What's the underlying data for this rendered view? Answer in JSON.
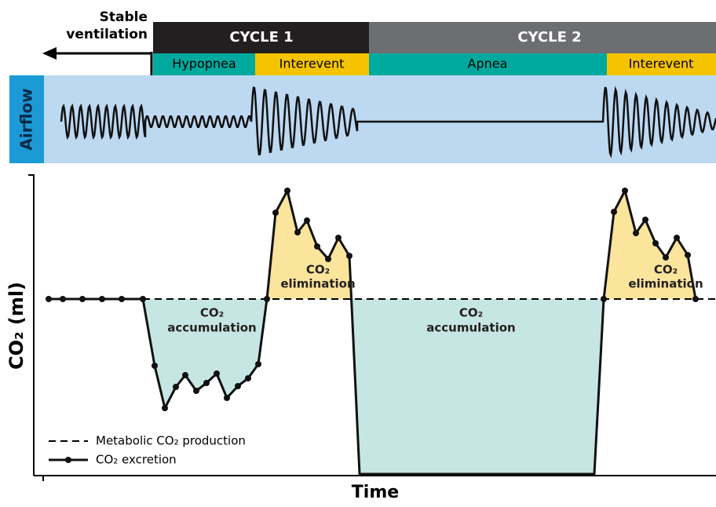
{
  "header": {
    "stable_ventilation": [
      "Stable",
      "ventilation"
    ],
    "cycles": [
      "CYCLE 1",
      "CYCLE 2"
    ],
    "phases": [
      "Hypopnea",
      "Interevent",
      "Apnea",
      "Interevent"
    ]
  },
  "airflow": {
    "label": "Airflow"
  },
  "co2_panel": {
    "y_label": "CO₂ (ml)",
    "x_label": "Time",
    "regions": [
      [
        "CO₂",
        "accumulation"
      ],
      [
        "CO₂",
        "elimination"
      ],
      [
        "CO₂",
        "accumulation"
      ],
      [
        "CO₂",
        "elimination"
      ]
    ],
    "legend": [
      "Metabolic CO₂ production",
      "CO₂ excretion"
    ]
  }
}
